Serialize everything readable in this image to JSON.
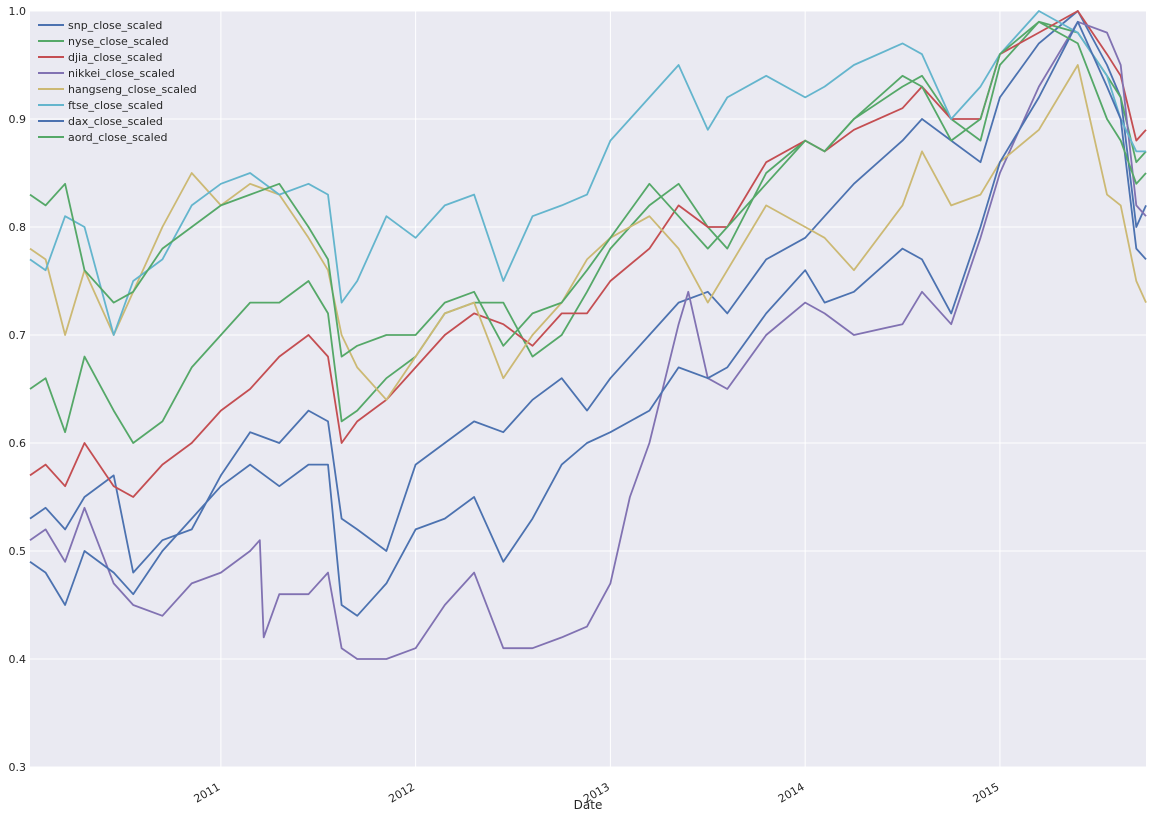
{
  "chart_data": {
    "type": "line",
    "title": "",
    "xlabel": "Date",
    "ylabel": "",
    "xlim": [
      2010.02,
      2015.75
    ],
    "ylim": [
      0.3,
      1.0
    ],
    "y_ticks": [
      "0.3",
      "0.4",
      "0.5",
      "0.6",
      "0.7",
      "0.8",
      "0.9",
      "1.0"
    ],
    "x_ticks": [
      {
        "value": 2011.0,
        "label": "2011"
      },
      {
        "value": 2012.0,
        "label": "2012"
      },
      {
        "value": 2013.0,
        "label": "2013"
      },
      {
        "value": 2014.0,
        "label": "2014"
      },
      {
        "value": 2015.0,
        "label": "2015"
      }
    ],
    "grid": true,
    "legend_position": "top-left",
    "background": "#EAEAF2",
    "series": [
      {
        "name": "snp_close_scaled",
        "color": "#4C72B0",
        "x": [
          2010.02,
          2010.1,
          2010.2,
          2010.3,
          2010.45,
          2010.55,
          2010.7,
          2010.85,
          2011.0,
          2011.15,
          2011.3,
          2011.45,
          2011.55,
          2011.62,
          2011.7,
          2011.85,
          2012.0,
          2012.15,
          2012.3,
          2012.45,
          2012.6,
          2012.75,
          2012.88,
          2013.0,
          2013.2,
          2013.35,
          2013.5,
          2013.6,
          2013.8,
          2014.0,
          2014.1,
          2014.25,
          2014.5,
          2014.6,
          2014.75,
          2014.9,
          2015.0,
          2015.2,
          2015.4,
          2015.55,
          2015.62,
          2015.7,
          2015.75
        ],
        "y": [
          0.53,
          0.54,
          0.52,
          0.55,
          0.57,
          0.48,
          0.51,
          0.52,
          0.57,
          0.61,
          0.6,
          0.63,
          0.62,
          0.53,
          0.52,
          0.5,
          0.58,
          0.6,
          0.62,
          0.61,
          0.64,
          0.66,
          0.63,
          0.66,
          0.7,
          0.73,
          0.74,
          0.72,
          0.77,
          0.79,
          0.81,
          0.84,
          0.88,
          0.9,
          0.88,
          0.86,
          0.92,
          0.97,
          1.0,
          0.95,
          0.92,
          0.8,
          0.82
        ]
      },
      {
        "name": "nyse_close_scaled",
        "color": "#55A868",
        "x": [
          2010.02,
          2010.1,
          2010.2,
          2010.3,
          2010.45,
          2010.55,
          2010.7,
          2010.85,
          2011.0,
          2011.15,
          2011.3,
          2011.45,
          2011.55,
          2011.62,
          2011.7,
          2011.85,
          2012.0,
          2012.15,
          2012.3,
          2012.45,
          2012.6,
          2012.75,
          2012.88,
          2013.0,
          2013.2,
          2013.35,
          2013.5,
          2013.6,
          2013.8,
          2014.0,
          2014.1,
          2014.25,
          2014.5,
          2014.6,
          2014.75,
          2014.9,
          2015.0,
          2015.2,
          2015.4,
          2015.55,
          2015.62,
          2015.7,
          2015.75
        ],
        "y": [
          0.65,
          0.66,
          0.61,
          0.68,
          0.63,
          0.6,
          0.62,
          0.67,
          0.7,
          0.73,
          0.73,
          0.75,
          0.72,
          0.62,
          0.63,
          0.66,
          0.68,
          0.72,
          0.73,
          0.73,
          0.68,
          0.7,
          0.74,
          0.78,
          0.82,
          0.84,
          0.8,
          0.78,
          0.85,
          0.88,
          0.87,
          0.9,
          0.93,
          0.94,
          0.9,
          0.88,
          0.95,
          0.99,
          0.98,
          0.94,
          0.92,
          0.86,
          0.87
        ]
      },
      {
        "name": "djia_close_scaled",
        "color": "#C44E52",
        "x": [
          2010.02,
          2010.1,
          2010.2,
          2010.3,
          2010.45,
          2010.55,
          2010.7,
          2010.85,
          2011.0,
          2011.15,
          2011.3,
          2011.45,
          2011.55,
          2011.62,
          2011.7,
          2011.85,
          2012.0,
          2012.15,
          2012.3,
          2012.45,
          2012.6,
          2012.75,
          2012.88,
          2013.0,
          2013.2,
          2013.35,
          2013.5,
          2013.6,
          2013.8,
          2014.0,
          2014.1,
          2014.25,
          2014.5,
          2014.6,
          2014.75,
          2014.9,
          2015.0,
          2015.2,
          2015.4,
          2015.55,
          2015.62,
          2015.7,
          2015.75
        ],
        "y": [
          0.57,
          0.58,
          0.56,
          0.6,
          0.56,
          0.55,
          0.58,
          0.6,
          0.63,
          0.65,
          0.68,
          0.7,
          0.68,
          0.6,
          0.62,
          0.64,
          0.67,
          0.7,
          0.72,
          0.71,
          0.69,
          0.72,
          0.72,
          0.75,
          0.78,
          0.82,
          0.8,
          0.8,
          0.86,
          0.88,
          0.87,
          0.89,
          0.91,
          0.93,
          0.9,
          0.9,
          0.96,
          0.98,
          1.0,
          0.96,
          0.94,
          0.88,
          0.89
        ]
      },
      {
        "name": "nikkei_close_scaled",
        "color": "#8172B2",
        "x": [
          2010.02,
          2010.1,
          2010.2,
          2010.3,
          2010.45,
          2010.55,
          2010.7,
          2010.85,
          2011.0,
          2011.15,
          2011.2,
          2011.22,
          2011.3,
          2011.45,
          2011.55,
          2011.62,
          2011.7,
          2011.85,
          2012.0,
          2012.15,
          2012.3,
          2012.45,
          2012.6,
          2012.75,
          2012.88,
          2013.0,
          2013.1,
          2013.2,
          2013.35,
          2013.4,
          2013.5,
          2013.6,
          2013.8,
          2014.0,
          2014.1,
          2014.25,
          2014.5,
          2014.6,
          2014.75,
          2014.9,
          2015.0,
          2015.2,
          2015.4,
          2015.55,
          2015.62,
          2015.7,
          2015.75
        ],
        "y": [
          0.51,
          0.52,
          0.49,
          0.54,
          0.47,
          0.45,
          0.44,
          0.47,
          0.48,
          0.5,
          0.51,
          0.42,
          0.46,
          0.46,
          0.48,
          0.41,
          0.4,
          0.4,
          0.41,
          0.45,
          0.48,
          0.41,
          0.41,
          0.42,
          0.43,
          0.47,
          0.55,
          0.6,
          0.71,
          0.74,
          0.66,
          0.65,
          0.7,
          0.73,
          0.72,
          0.7,
          0.71,
          0.74,
          0.71,
          0.79,
          0.85,
          0.93,
          0.99,
          0.98,
          0.95,
          0.82,
          0.81
        ]
      },
      {
        "name": "hangseng_close_scaled",
        "color": "#CCB974",
        "x": [
          2010.02,
          2010.1,
          2010.2,
          2010.3,
          2010.45,
          2010.55,
          2010.7,
          2010.85,
          2011.0,
          2011.15,
          2011.3,
          2011.45,
          2011.55,
          2011.62,
          2011.7,
          2011.85,
          2012.0,
          2012.15,
          2012.3,
          2012.45,
          2012.6,
          2012.75,
          2012.88,
          2013.0,
          2013.2,
          2013.35,
          2013.5,
          2013.6,
          2013.8,
          2014.0,
          2014.1,
          2014.25,
          2014.5,
          2014.6,
          2014.75,
          2014.9,
          2015.0,
          2015.2,
          2015.4,
          2015.55,
          2015.62,
          2015.7,
          2015.75
        ],
        "y": [
          0.78,
          0.77,
          0.7,
          0.76,
          0.7,
          0.74,
          0.8,
          0.85,
          0.82,
          0.84,
          0.83,
          0.79,
          0.76,
          0.7,
          0.67,
          0.64,
          0.68,
          0.72,
          0.73,
          0.66,
          0.7,
          0.73,
          0.77,
          0.79,
          0.81,
          0.78,
          0.73,
          0.76,
          0.82,
          0.8,
          0.79,
          0.76,
          0.82,
          0.87,
          0.82,
          0.83,
          0.86,
          0.89,
          0.95,
          0.83,
          0.82,
          0.75,
          0.73
        ]
      },
      {
        "name": "ftse_close_scaled",
        "color": "#64B5CD",
        "x": [
          2010.02,
          2010.1,
          2010.2,
          2010.3,
          2010.45,
          2010.55,
          2010.7,
          2010.85,
          2011.0,
          2011.15,
          2011.3,
          2011.45,
          2011.55,
          2011.62,
          2011.7,
          2011.85,
          2012.0,
          2012.15,
          2012.3,
          2012.45,
          2012.6,
          2012.75,
          2012.88,
          2013.0,
          2013.2,
          2013.35,
          2013.5,
          2013.6,
          2013.8,
          2014.0,
          2014.1,
          2014.25,
          2014.5,
          2014.6,
          2014.75,
          2014.9,
          2015.0,
          2015.2,
          2015.4,
          2015.55,
          2015.62,
          2015.7,
          2015.75
        ],
        "y": [
          0.77,
          0.76,
          0.81,
          0.8,
          0.7,
          0.75,
          0.77,
          0.82,
          0.84,
          0.85,
          0.83,
          0.84,
          0.83,
          0.73,
          0.75,
          0.81,
          0.79,
          0.82,
          0.83,
          0.75,
          0.81,
          0.82,
          0.83,
          0.88,
          0.92,
          0.95,
          0.89,
          0.92,
          0.94,
          0.92,
          0.93,
          0.95,
          0.97,
          0.96,
          0.9,
          0.93,
          0.96,
          1.0,
          0.98,
          0.94,
          0.9,
          0.87,
          0.87
        ]
      },
      {
        "name": "dax_close_scaled",
        "color": "#4C72B0",
        "x": [
          2010.02,
          2010.1,
          2010.2,
          2010.3,
          2010.45,
          2010.55,
          2010.7,
          2010.85,
          2011.0,
          2011.15,
          2011.3,
          2011.45,
          2011.55,
          2011.62,
          2011.7,
          2011.85,
          2012.0,
          2012.15,
          2012.3,
          2012.45,
          2012.6,
          2012.75,
          2012.88,
          2013.0,
          2013.2,
          2013.35,
          2013.5,
          2013.6,
          2013.8,
          2014.0,
          2014.1,
          2014.25,
          2014.5,
          2014.6,
          2014.75,
          2014.9,
          2015.0,
          2015.2,
          2015.4,
          2015.55,
          2015.62,
          2015.7,
          2015.75
        ],
        "y": [
          0.49,
          0.48,
          0.45,
          0.5,
          0.48,
          0.46,
          0.5,
          0.53,
          0.56,
          0.58,
          0.56,
          0.58,
          0.58,
          0.45,
          0.44,
          0.47,
          0.52,
          0.53,
          0.55,
          0.49,
          0.53,
          0.58,
          0.6,
          0.61,
          0.63,
          0.67,
          0.66,
          0.67,
          0.72,
          0.76,
          0.73,
          0.74,
          0.78,
          0.77,
          0.72,
          0.8,
          0.86,
          0.92,
          0.99,
          0.93,
          0.9,
          0.78,
          0.77
        ]
      },
      {
        "name": "aord_close_scaled",
        "color": "#55A868",
        "x": [
          2010.02,
          2010.1,
          2010.2,
          2010.3,
          2010.45,
          2010.55,
          2010.7,
          2010.85,
          2011.0,
          2011.15,
          2011.3,
          2011.45,
          2011.55,
          2011.62,
          2011.7,
          2011.85,
          2012.0,
          2012.15,
          2012.3,
          2012.45,
          2012.6,
          2012.75,
          2012.88,
          2013.0,
          2013.2,
          2013.35,
          2013.5,
          2013.6,
          2013.8,
          2014.0,
          2014.1,
          2014.25,
          2014.5,
          2014.6,
          2014.75,
          2014.9,
          2015.0,
          2015.2,
          2015.4,
          2015.55,
          2015.62,
          2015.7,
          2015.75
        ],
        "y": [
          0.83,
          0.82,
          0.84,
          0.76,
          0.73,
          0.74,
          0.78,
          0.8,
          0.82,
          0.83,
          0.84,
          0.8,
          0.77,
          0.68,
          0.69,
          0.7,
          0.7,
          0.73,
          0.74,
          0.69,
          0.72,
          0.73,
          0.76,
          0.79,
          0.84,
          0.81,
          0.78,
          0.8,
          0.84,
          0.88,
          0.87,
          0.9,
          0.94,
          0.93,
          0.88,
          0.9,
          0.96,
          0.99,
          0.97,
          0.9,
          0.88,
          0.84,
          0.85
        ]
      }
    ]
  }
}
